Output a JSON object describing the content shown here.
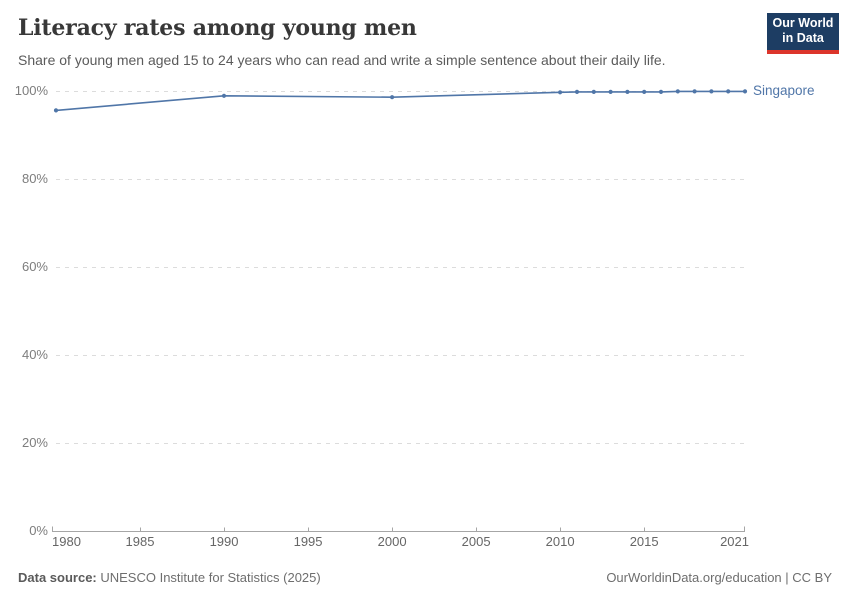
{
  "header": {
    "title": "Literacy rates among young men",
    "subtitle": "Share of young men aged 15 to 24 years who can read and write a simple sentence about their daily life."
  },
  "logo": {
    "line1": "Our World",
    "line2": "in Data",
    "background": "#1d3d63",
    "bar_color": "#dc352b"
  },
  "chart_data": {
    "type": "line",
    "title": "Literacy rates among young men",
    "xlabel": "",
    "ylabel": "",
    "xlim": [
      1980,
      2021
    ],
    "ylim": [
      0,
      100
    ],
    "x_ticks": [
      1980,
      1985,
      1990,
      1995,
      2000,
      2005,
      2010,
      2015,
      2021
    ],
    "y_ticks": [
      0,
      20,
      40,
      60,
      80,
      100
    ],
    "y_tick_suffix": "%",
    "grid": "horizontal-dashed",
    "legend_position": "end-of-line-label",
    "series": [
      {
        "name": "Singapore",
        "color": "#5076a8",
        "points": [
          [
            1980,
            95.6
          ],
          [
            1990,
            98.9
          ],
          [
            2000,
            98.6
          ],
          [
            2010,
            99.7
          ],
          [
            2011,
            99.8
          ],
          [
            2012,
            99.8
          ],
          [
            2013,
            99.8
          ],
          [
            2014,
            99.8
          ],
          [
            2015,
            99.8
          ],
          [
            2016,
            99.8
          ],
          [
            2017,
            99.9
          ],
          [
            2018,
            99.9
          ],
          [
            2019,
            99.9
          ],
          [
            2020,
            99.9
          ],
          [
            2021,
            99.9
          ]
        ]
      }
    ]
  },
  "footer": {
    "source_label": "Data source:",
    "source_text": " UNESCO Institute for Statistics (2025)",
    "attribution": "OurWorldinData.org/education | CC BY"
  },
  "colors": {
    "line": "#5076a8",
    "gridline": "#dcdcdc",
    "axis": "#a6a6a6",
    "title_text": "#383838",
    "subtitle_text": "#5b5b5b"
  }
}
